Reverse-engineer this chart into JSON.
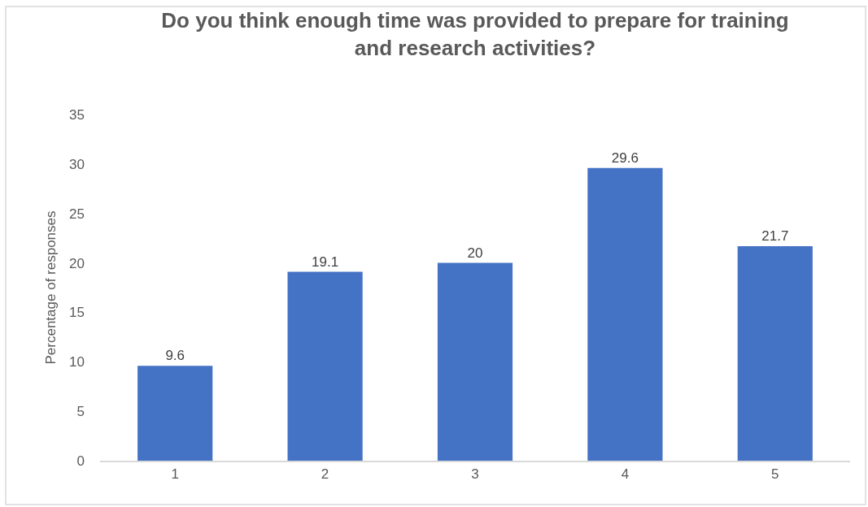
{
  "chart_data": {
    "type": "bar",
    "title": "Do you think enough time was provided to prepare for training\nand research activities?",
    "ylabel": "Percentage of responses",
    "categories": [
      "1",
      "2",
      "3",
      "4",
      "5"
    ],
    "values": [
      9.6,
      19.1,
      20,
      29.6,
      21.7
    ],
    "color": "#4472c4",
    "ylim": [
      0,
      35
    ],
    "yticks": [
      0,
      5,
      10,
      15,
      20,
      25,
      30,
      35
    ],
    "grid": false,
    "legend": false,
    "data_labels": true
  }
}
